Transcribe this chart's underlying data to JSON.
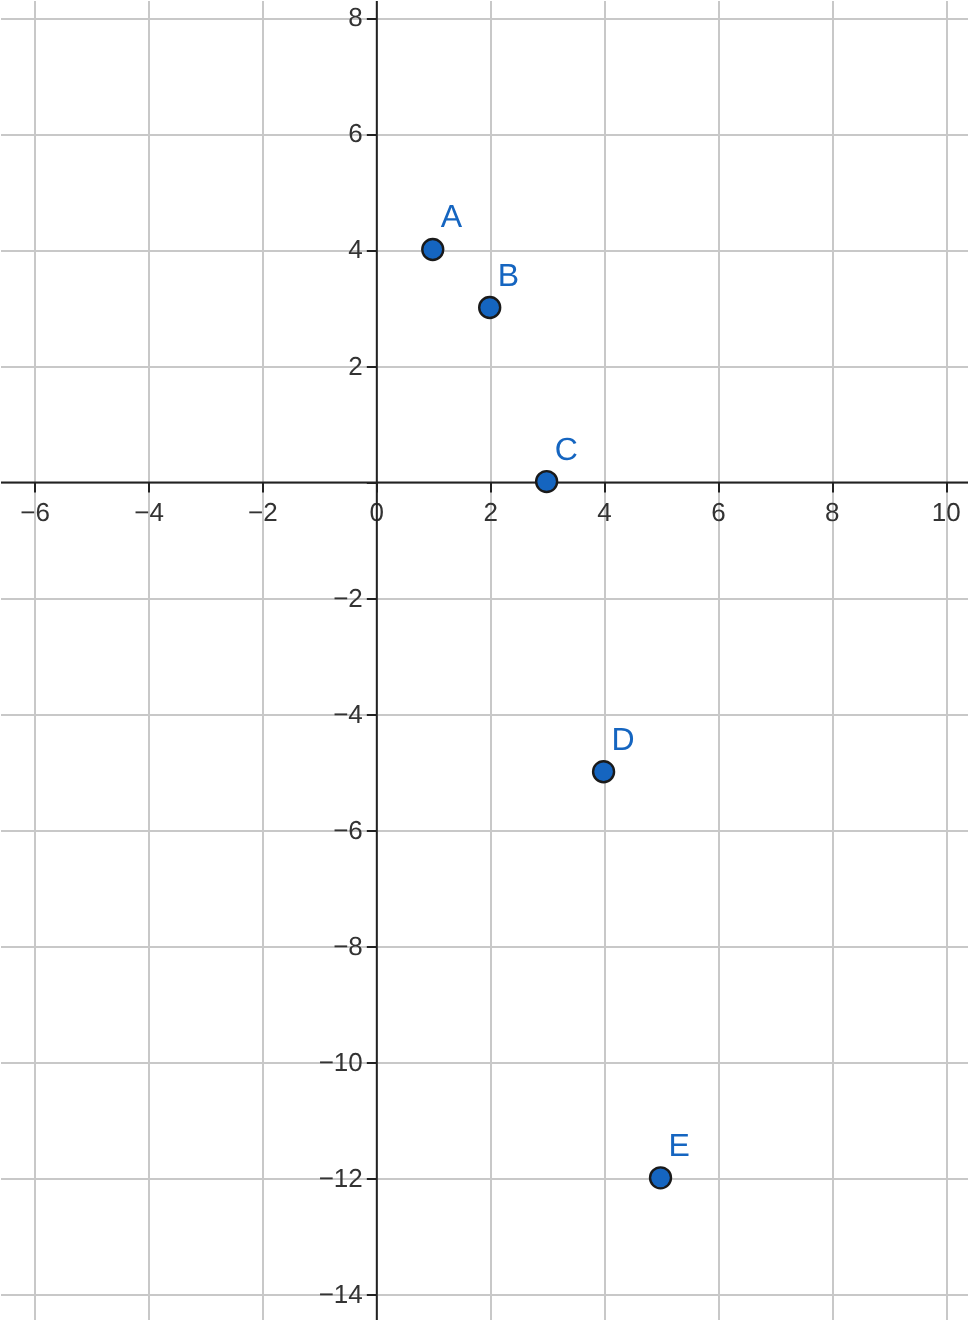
{
  "chart_data": {
    "type": "scatter",
    "x": [
      1,
      2,
      3,
      4,
      5
    ],
    "series": [
      {
        "color": "#1565c0",
        "values": [
          4,
          3,
          0,
          -5,
          -12
        ]
      }
    ],
    "annotations": [
      {
        "text": "A",
        "x": 1,
        "y": 4
      },
      {
        "text": "B",
        "x": 2,
        "y": 3
      },
      {
        "text": "C",
        "x": 3,
        "y": 0
      },
      {
        "text": "D",
        "x": 4,
        "y": -5
      },
      {
        "text": "E",
        "x": 5,
        "y": -12
      }
    ],
    "xlim": [
      -6.6,
      10.4
    ],
    "ylim": [
      -14.45,
      8.3
    ],
    "xticks": [
      -6,
      -4,
      -2,
      0,
      2,
      4,
      6,
      8,
      10
    ],
    "yticks": [
      -14,
      -12,
      -10,
      -8,
      -6,
      -4,
      -2,
      {
        "value": 0,
        "label": null
      },
      2,
      4,
      6,
      8
    ],
    "grid": true,
    "marker": "circle"
  }
}
